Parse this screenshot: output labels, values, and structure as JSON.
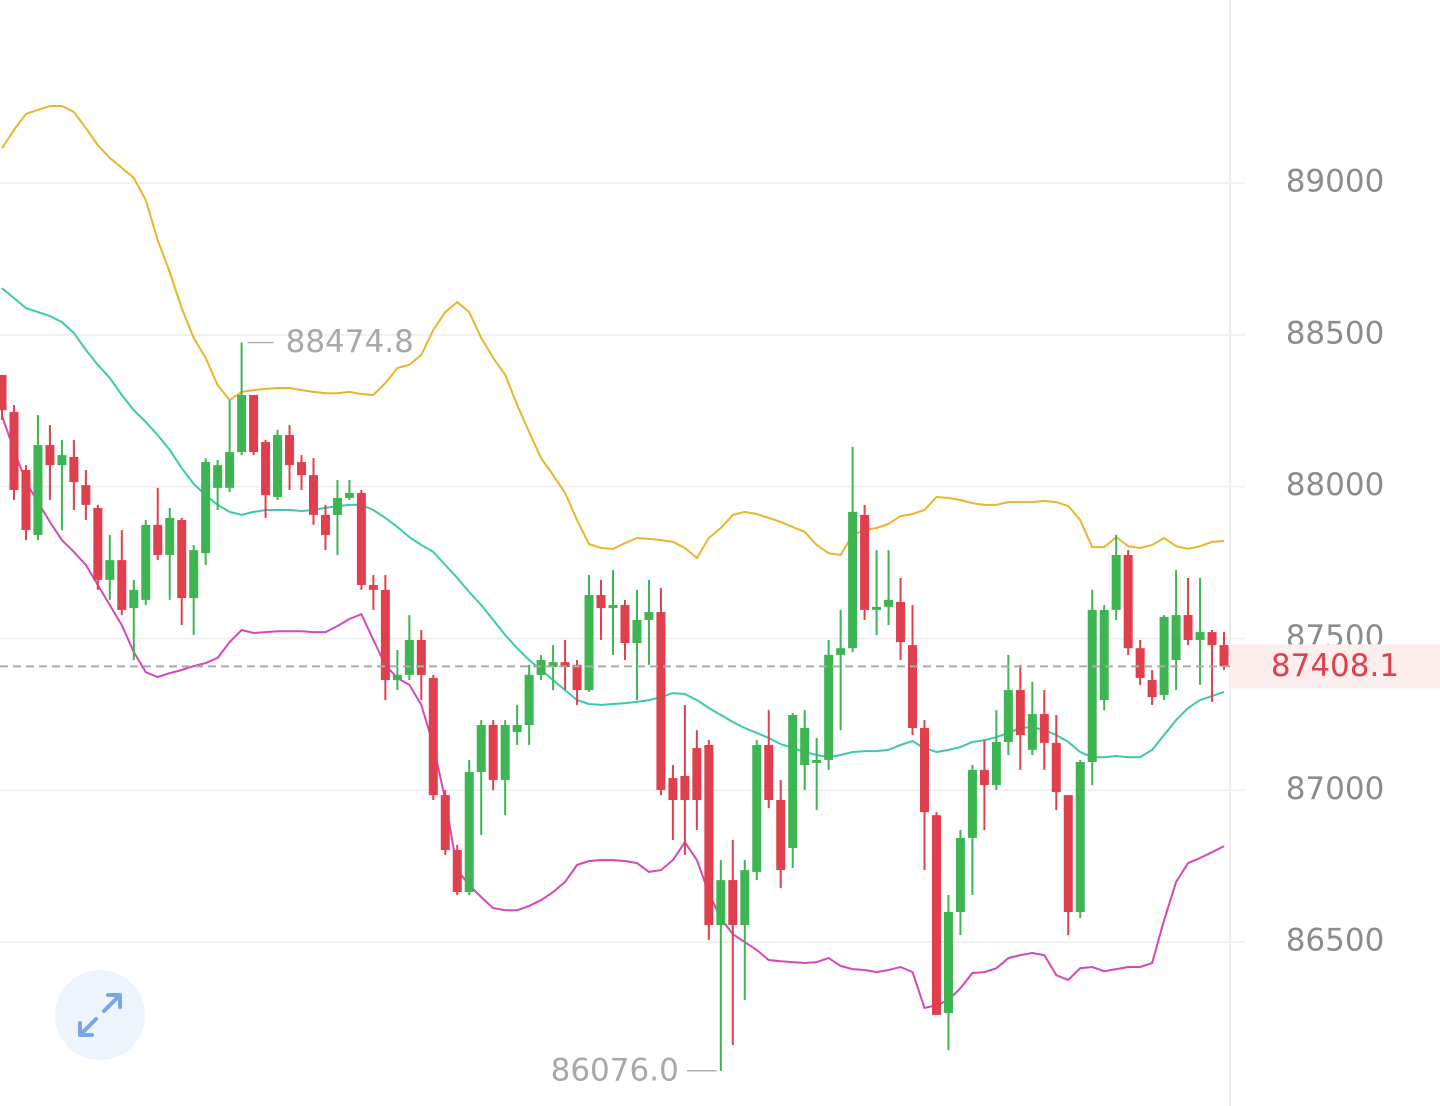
{
  "chart_data": {
    "type": "candlestick",
    "ylim": [
      85960,
      89603
    ],
    "yticks": [
      86500,
      87000,
      87500,
      88000,
      88500,
      89000
    ],
    "grid": true,
    "up_color": "#3db553",
    "down_color": "#e0404e",
    "open": [
      88368,
      88246,
      88055,
      87841,
      88137,
      88071,
      88098,
      88005,
      87930,
      87693,
      87758,
      87600,
      87627,
      87874,
      87775,
      87890,
      87633,
      87781,
      87996,
      87996,
      88114,
      88302,
      88147,
      87966,
      88170,
      88081,
      88038,
      87907,
      87907,
      87963,
      87979,
      87676,
      87660,
      87363,
      87380,
      87495,
      87370,
      86984,
      86803,
      86665,
      87060,
      87215,
      87034,
      87192,
      87215,
      87380,
      87406,
      87422,
      87413,
      87330,
      87643,
      87600,
      87610,
      87485,
      87561,
      87587,
      87040,
      87047,
      87139,
      87149,
      86556,
      86704,
      86556,
      86731,
      87149,
      86968,
      86810,
      87083,
      87090,
      87100,
      87446,
      87468,
      87907,
      87594,
      87604,
      87620,
      87478,
      87205,
      86918,
      86266,
      86599,
      86843,
      87067,
      87017,
      87159,
      87330,
      87133,
      87251,
      87156,
      86984,
      86599,
      87093,
      87297,
      87594,
      87775,
      87468,
      87363,
      87314,
      87429,
      87577,
      87495,
      87521,
      87478
    ],
    "high": [
      88368,
      88269,
      88071,
      88236,
      88203,
      88154,
      88154,
      88055,
      87940,
      87841,
      87857,
      87693,
      87890,
      87996,
      87930,
      87897,
      87808,
      88094,
      88088,
      88285,
      88474.8,
      88302,
      88154,
      88187,
      88203,
      88104,
      88094,
      87940,
      88022,
      88022,
      87989,
      87709,
      87709,
      87462,
      87577,
      87528,
      87380,
      87001,
      86820,
      87100,
      87231,
      87231,
      87231,
      87281,
      87413,
      87446,
      87478,
      87495,
      87429,
      87709,
      87693,
      87725,
      87627,
      87660,
      87693,
      87666,
      87083,
      87281,
      87198,
      87165,
      86770,
      86836,
      86770,
      87165,
      87264,
      87034,
      87254,
      87264,
      87172,
      87495,
      87594,
      88131,
      87940,
      87791,
      87791,
      87699,
      87610,
      87231,
      86928,
      86655,
      86869,
      87083,
      87165,
      87264,
      87446,
      87413,
      87357,
      87330,
      87248,
      86984,
      87100,
      87660,
      87610,
      87841,
      87791,
      87495,
      87396,
      87577,
      87725,
      87699,
      87699,
      87528,
      87521
    ],
    "low": [
      88220,
      87956,
      87824,
      87824,
      87956,
      87857,
      87923,
      87890,
      87660,
      87627,
      87577,
      87429,
      87610,
      87758,
      87627,
      87544,
      87511,
      87742,
      87923,
      87982,
      88104,
      88104,
      87897,
      87956,
      87989,
      87989,
      87874,
      87791,
      87775,
      87956,
      87660,
      87594,
      87297,
      87330,
      87363,
      87297,
      86968,
      86787,
      86655,
      86655,
      86853,
      87001,
      86918,
      87149,
      87149,
      87363,
      87330,
      87330,
      87281,
      87324,
      87495,
      87446,
      87429,
      87297,
      87413,
      86984,
      86836,
      86787,
      86869,
      86507,
      86076,
      86161,
      86309,
      86704,
      86941,
      86678,
      86744,
      87001,
      86935,
      87067,
      87198,
      87455,
      87561,
      87511,
      87544,
      87429,
      87182,
      86737,
      86260,
      86144,
      86523,
      86655,
      86869,
      87001,
      87116,
      87067,
      87116,
      87067,
      86935,
      86523,
      86579,
      87017,
      87264,
      87561,
      87446,
      87347,
      87281,
      87297,
      87330,
      87478,
      87347,
      87291,
      87396
    ],
    "close": [
      88252,
      87989,
      87857,
      88137,
      88071,
      88104,
      88015,
      87940,
      87693,
      87758,
      87594,
      87660,
      87874,
      87775,
      87897,
      87633,
      87791,
      88081,
      88071,
      88114,
      88302,
      88114,
      87972,
      88170,
      88071,
      88038,
      87907,
      87841,
      87963,
      87979,
      87676,
      87660,
      87363,
      87380,
      87495,
      87380,
      86984,
      86803,
      86665,
      87060,
      87215,
      87034,
      87215,
      87215,
      87380,
      87429,
      87422,
      87406,
      87330,
      87643,
      87600,
      87610,
      87485,
      87561,
      87587,
      87001,
      86968,
      86968,
      86968,
      86556,
      86704,
      86556,
      86737,
      87149,
      86968,
      86737,
      87248,
      87205,
      87100,
      87446,
      87468,
      87917,
      87594,
      87604,
      87627,
      87488,
      87205,
      86928,
      86260,
      86599,
      86843,
      87067,
      87017,
      87159,
      87330,
      87182,
      87251,
      87156,
      86994,
      86599,
      87093,
      87594,
      87594,
      87775,
      87468,
      87370,
      87307,
      87571,
      87577,
      87495,
      87521,
      87478,
      87408.1
    ],
    "bands": [
      {
        "color": "#e8b52c",
        "values": [
          89115,
          89175,
          89228,
          89241,
          89254,
          89254,
          89234,
          89181,
          89125,
          89083,
          89050,
          89017,
          88944,
          88812,
          88707,
          88588,
          88490,
          88424,
          88335,
          88285,
          88312,
          88318,
          88322,
          88325,
          88325,
          88318,
          88312,
          88308,
          88308,
          88312,
          88305,
          88302,
          88341,
          88391,
          88401,
          88434,
          88516,
          88575,
          88608,
          88575,
          88490,
          88424,
          88368,
          88269,
          88180,
          88094,
          88038,
          87979,
          87890,
          87811,
          87798,
          87795,
          87814,
          87831,
          87828,
          87824,
          87818,
          87798,
          87765,
          87831,
          87864,
          87907,
          87917,
          87910,
          87897,
          87884,
          87867,
          87851,
          87808,
          87781,
          87775,
          87841,
          87857,
          87864,
          87877,
          87903,
          87910,
          87923,
          87966,
          87963,
          87956,
          87946,
          87940,
          87940,
          87949,
          87949,
          87949,
          87953,
          87949,
          87936,
          87890,
          87801,
          87801,
          87834,
          87804,
          87798,
          87808,
          87831,
          87804,
          87795,
          87804,
          87818,
          87821
        ]
      },
      {
        "color": "#3cc9ae",
        "values": [
          88654,
          88621,
          88588,
          88575,
          88562,
          88542,
          88506,
          88450,
          88401,
          88358,
          88302,
          88252,
          88213,
          88170,
          88121,
          88061,
          88009,
          87972,
          87940,
          87917,
          87907,
          87917,
          87923,
          87923,
          87923,
          87920,
          87923,
          87930,
          87936,
          87940,
          87940,
          87923,
          87897,
          87867,
          87834,
          87808,
          87785,
          87742,
          87699,
          87653,
          87610,
          87561,
          87511,
          87468,
          87429,
          87396,
          87363,
          87330,
          87297,
          87284,
          87281,
          87284,
          87287,
          87291,
          87297,
          87307,
          87320,
          87317,
          87297,
          87271,
          87248,
          87225,
          87205,
          87189,
          87172,
          87152,
          87139,
          87126,
          87116,
          87109,
          87116,
          87126,
          87129,
          87129,
          87133,
          87149,
          87162,
          87139,
          87126,
          87133,
          87142,
          87159,
          87165,
          87175,
          87189,
          87205,
          87208,
          87198,
          87182,
          87159,
          87126,
          87109,
          87109,
          87113,
          87109,
          87109,
          87133,
          87182,
          87231,
          87271,
          87297,
          87310,
          87324
        ]
      },
      {
        "color": "#d447bd",
        "values": [
          88233,
          88121,
          88015,
          87949,
          87884,
          87824,
          87785,
          87742,
          87676,
          87610,
          87544,
          87455,
          87389,
          87373,
          87386,
          87396,
          87409,
          87419,
          87436,
          87488,
          87528,
          87518,
          87521,
          87524,
          87524,
          87524,
          87521,
          87521,
          87541,
          87564,
          87580,
          87495,
          87412,
          87370,
          87347,
          87281,
          87149,
          86968,
          86737,
          86688,
          86648,
          86612,
          86605,
          86605,
          86619,
          86638,
          86665,
          86698,
          86754,
          86767,
          86770,
          86770,
          86767,
          86760,
          86731,
          86737,
          86770,
          86829,
          86770,
          86661,
          86579,
          86526,
          86500,
          86474,
          86441,
          86437,
          86434,
          86431,
          86434,
          86447,
          86421,
          86411,
          86408,
          86401,
          86408,
          86418,
          86401,
          86283,
          86292,
          86309,
          86348,
          86398,
          86401,
          86414,
          86447,
          86457,
          86464,
          86457,
          86391,
          86375,
          86414,
          86418,
          86404,
          86411,
          86418,
          86418,
          86431,
          86572,
          86698,
          86760,
          86777,
          86796,
          86816
        ]
      }
    ],
    "high_label": 88474.8,
    "low_label": {
      "value": 86076.0,
      "label": "86076.0"
    },
    "last_price": 87408.1
  }
}
